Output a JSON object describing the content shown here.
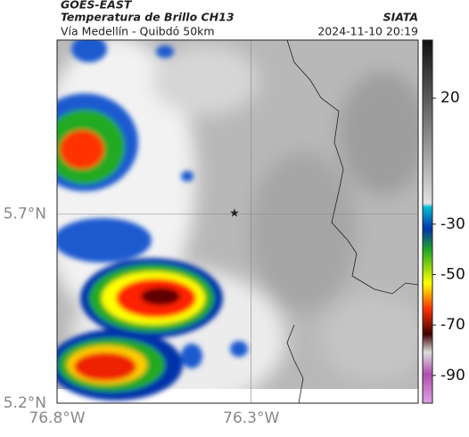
{
  "chart_data": {
    "type": "map",
    "title": "GOES-EAST",
    "subtitle": "Temperatura de Brillo CH13",
    "caption": "Vía Medellín - Quibdó 50km",
    "source": "SIATA",
    "timestamp": "2024-11-10 20:19",
    "xlim": [
      -76.8,
      -75.87
    ],
    "ylim": [
      5.2,
      6.16
    ],
    "xticks": [
      {
        "value": -76.8,
        "label": "76.8°W"
      },
      {
        "value": -76.3,
        "label": "76.3°W"
      }
    ],
    "yticks": [
      {
        "value": 5.2,
        "label": "5.2°N"
      },
      {
        "value": 5.7,
        "label": "5.7°N"
      }
    ],
    "grid": true,
    "colorbar": {
      "lim": [
        -101,
        43
      ],
      "ticks": [
        20,
        -30,
        -50,
        -70,
        -90
      ]
    }
  }
}
